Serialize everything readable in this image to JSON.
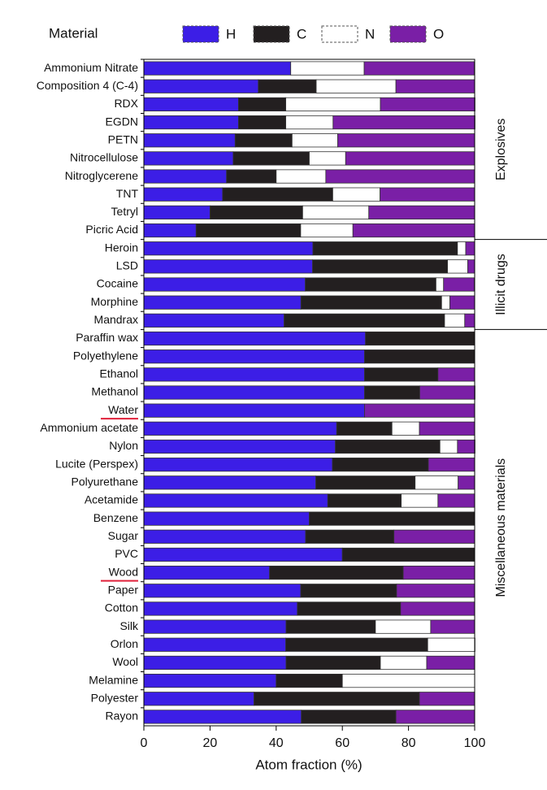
{
  "chart_data": {
    "type": "stacked-bar-horizontal",
    "legend_title": "Material",
    "xlabel": "Atom fraction (%)",
    "xlim": [
      0,
      100
    ],
    "xticks": [
      0,
      20,
      40,
      60,
      80,
      100
    ],
    "group_labels": [
      "Explosives",
      "Illicit drugs",
      "Miscellaneous materials"
    ],
    "categories": [
      "Ammonium Nitrate",
      "Composition 4 (C-4)",
      "RDX",
      "EGDN",
      "PETN",
      "Nitrocellulose",
      "Nitroglycerene",
      "TNT",
      "Tetryl",
      "Picric Acid",
      "Heroin",
      "LSD",
      "Cocaine",
      "Morphine",
      "Mandrax",
      "Paraffin wax",
      "Polyethylene",
      "Ethanol",
      "Methanol",
      "Water",
      "Ammonium acetate",
      "Nylon",
      "Lucite (Perspex)",
      "Polyurethane",
      "Acetamide",
      "Benzene",
      "Sugar",
      "PVC",
      "Wood",
      "Paper",
      "Cotton",
      "Silk",
      "Orlon",
      "Wool",
      "Melamine",
      "Polyester",
      "Rayon"
    ],
    "series": [
      {
        "name": "H",
        "color": "#3c1ee6",
        "values": [
          44.4,
          34.6,
          28.6,
          28.6,
          27.6,
          27,
          25,
          23.8,
          20,
          15.8,
          51.1,
          51,
          48.8,
          47.5,
          42.4,
          67,
          66.7,
          66.7,
          66.7,
          66.7,
          58.3,
          57.9,
          57,
          52,
          55.6,
          50,
          48.9,
          60,
          38,
          47.4,
          46.4,
          43,
          42.9,
          43,
          40,
          33.3,
          47.6
        ]
      },
      {
        "name": "C",
        "color": "#231f20",
        "values": [
          0,
          17.5,
          14.3,
          14.3,
          17.2,
          23,
          15,
          33.3,
          28,
          31.6,
          43.7,
          40.8,
          39.5,
          42.5,
          48.5,
          33,
          33.3,
          22.2,
          16.7,
          0,
          16.7,
          31.6,
          29,
          30,
          22.2,
          50,
          26.7,
          40,
          40.4,
          29,
          31.2,
          27,
          42.9,
          28.5,
          20,
          50,
          28.6
        ]
      },
      {
        "name": "N",
        "color": "#ffffff",
        "values": [
          22.2,
          24.1,
          28.6,
          14.3,
          13.8,
          11,
          15,
          14.3,
          20,
          15.8,
          2.5,
          6.1,
          2.3,
          2.5,
          6.1,
          0,
          0,
          0,
          0,
          0,
          8.3,
          5.3,
          0,
          13,
          11.1,
          0,
          0,
          0,
          0,
          0,
          0,
          16.7,
          14.3,
          14,
          40,
          0,
          0
        ]
      },
      {
        "name": "O",
        "color": "#7a1fa6",
        "values": [
          33.3,
          23.8,
          28.6,
          42.9,
          41.4,
          39,
          45,
          28.6,
          32,
          36.8,
          2.7,
          2.1,
          9.3,
          7.5,
          3,
          0,
          0,
          11.1,
          16.7,
          33.3,
          16.7,
          5.3,
          14,
          5,
          11.1,
          0,
          24.4,
          0,
          21.6,
          23.6,
          22.4,
          13.3,
          0,
          14.5,
          0,
          16.7,
          23.8
        ]
      }
    ]
  }
}
